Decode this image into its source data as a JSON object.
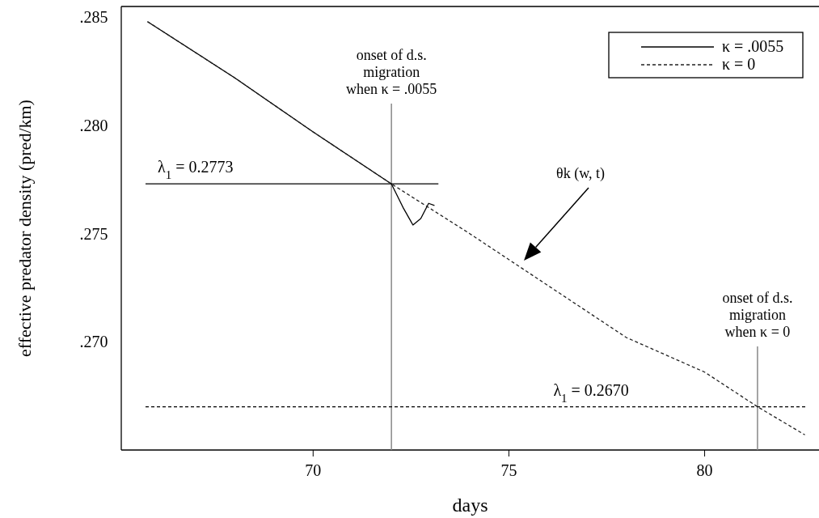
{
  "chart_data": {
    "type": "line",
    "xlabel": "days",
    "ylabel": "effective predator density (pred/km)",
    "xlim": [
      65.1,
      82.9
    ],
    "xticks": [
      70,
      75,
      80
    ],
    "ylim": [
      0.265,
      0.2855
    ],
    "yticks": [
      {
        "value": 0.285,
        "label": ".285"
      },
      {
        "value": 0.28,
        "label": ".280"
      },
      {
        "value": 0.275,
        "label": ".275"
      },
      {
        "value": 0.27,
        "label": ".270"
      }
    ],
    "grid": false,
    "legend": "top right",
    "marker": "none",
    "series": [
      {
        "name": "κ = .0055",
        "color": "#000000",
        "line_style": "solid",
        "x": [
          65.77,
          68,
          70,
          72,
          72.3,
          72.55,
          72.75,
          72.95,
          73.1
        ],
        "values": [
          0.2848,
          0.2822,
          0.2797,
          0.2773,
          0.2762,
          0.2754,
          0.2757,
          0.2764,
          0.2763
        ]
      },
      {
        "name": "κ = 0",
        "color": "#222222",
        "line_style": "dashed",
        "x": [
          65.77,
          68,
          70,
          72,
          74,
          76,
          78,
          80,
          81.35,
          82.56
        ],
        "values": [
          0.2848,
          0.2822,
          0.2797,
          0.2773,
          0.275,
          0.2726,
          0.2702,
          0.2686,
          0.267,
          0.2657
        ]
      }
    ],
    "ref_lines": [
      {
        "axis": "x",
        "value": 72,
        "label": "onset of d.s.\nmigration\nwhen κ = .0055",
        "color": "#888888",
        "line_style": "solid"
      },
      {
        "axis": "x",
        "value": 81.35,
        "label": "onset of d.s.\nmigration",
        "color": "#888888",
        "line_style": "solid"
      },
      {
        "axis": "y",
        "value": 0.2773,
        "label": "λ$_{1}$ = 0.2773",
        "color": "#000000",
        "line_style": "solid"
      },
      {
        "axis": "y",
        "value": 0.267,
        "label": "λ$_{1}$ = 0.2670",
        "color": "#000000",
        "line_style": "dashed"
      }
    ],
    "annotations": [
      "θk (w, t)",
      "when κ = 0"
    ]
  }
}
